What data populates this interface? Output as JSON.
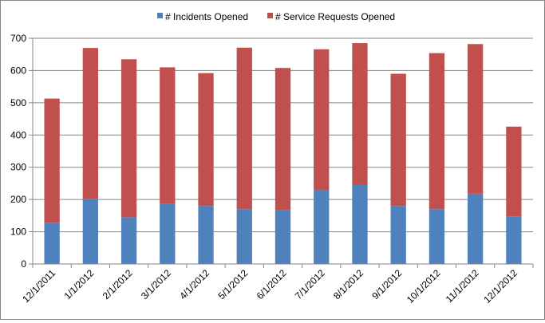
{
  "chart_data": {
    "type": "bar",
    "stacked": true,
    "categories": [
      "12/1/2011",
      "1/1/2012",
      "2/1/2012",
      "3/1/2012",
      "4/1/2012",
      "5/1/2012",
      "6/1/2012",
      "7/1/2012",
      "8/1/2012",
      "9/1/2012",
      "10/1/2012",
      "11/1/2012",
      "12/1/2012"
    ],
    "series": [
      {
        "name": "# Incidents Opened",
        "color": "#4F81BD",
        "values": [
          128,
          202,
          145,
          187,
          180,
          170,
          168,
          229,
          245,
          180,
          170,
          218,
          148
        ]
      },
      {
        "name": "# Service Requests Opened",
        "color": "#C0504D",
        "values": [
          385,
          468,
          490,
          423,
          412,
          501,
          440,
          437,
          440,
          410,
          484,
          464,
          278
        ]
      }
    ],
    "ylim": [
      0,
      700
    ],
    "yticks": [
      0,
      100,
      200,
      300,
      400,
      500,
      600,
      700
    ],
    "grid": true,
    "legend_position": "top",
    "title": "",
    "xlabel": "",
    "ylabel": ""
  }
}
